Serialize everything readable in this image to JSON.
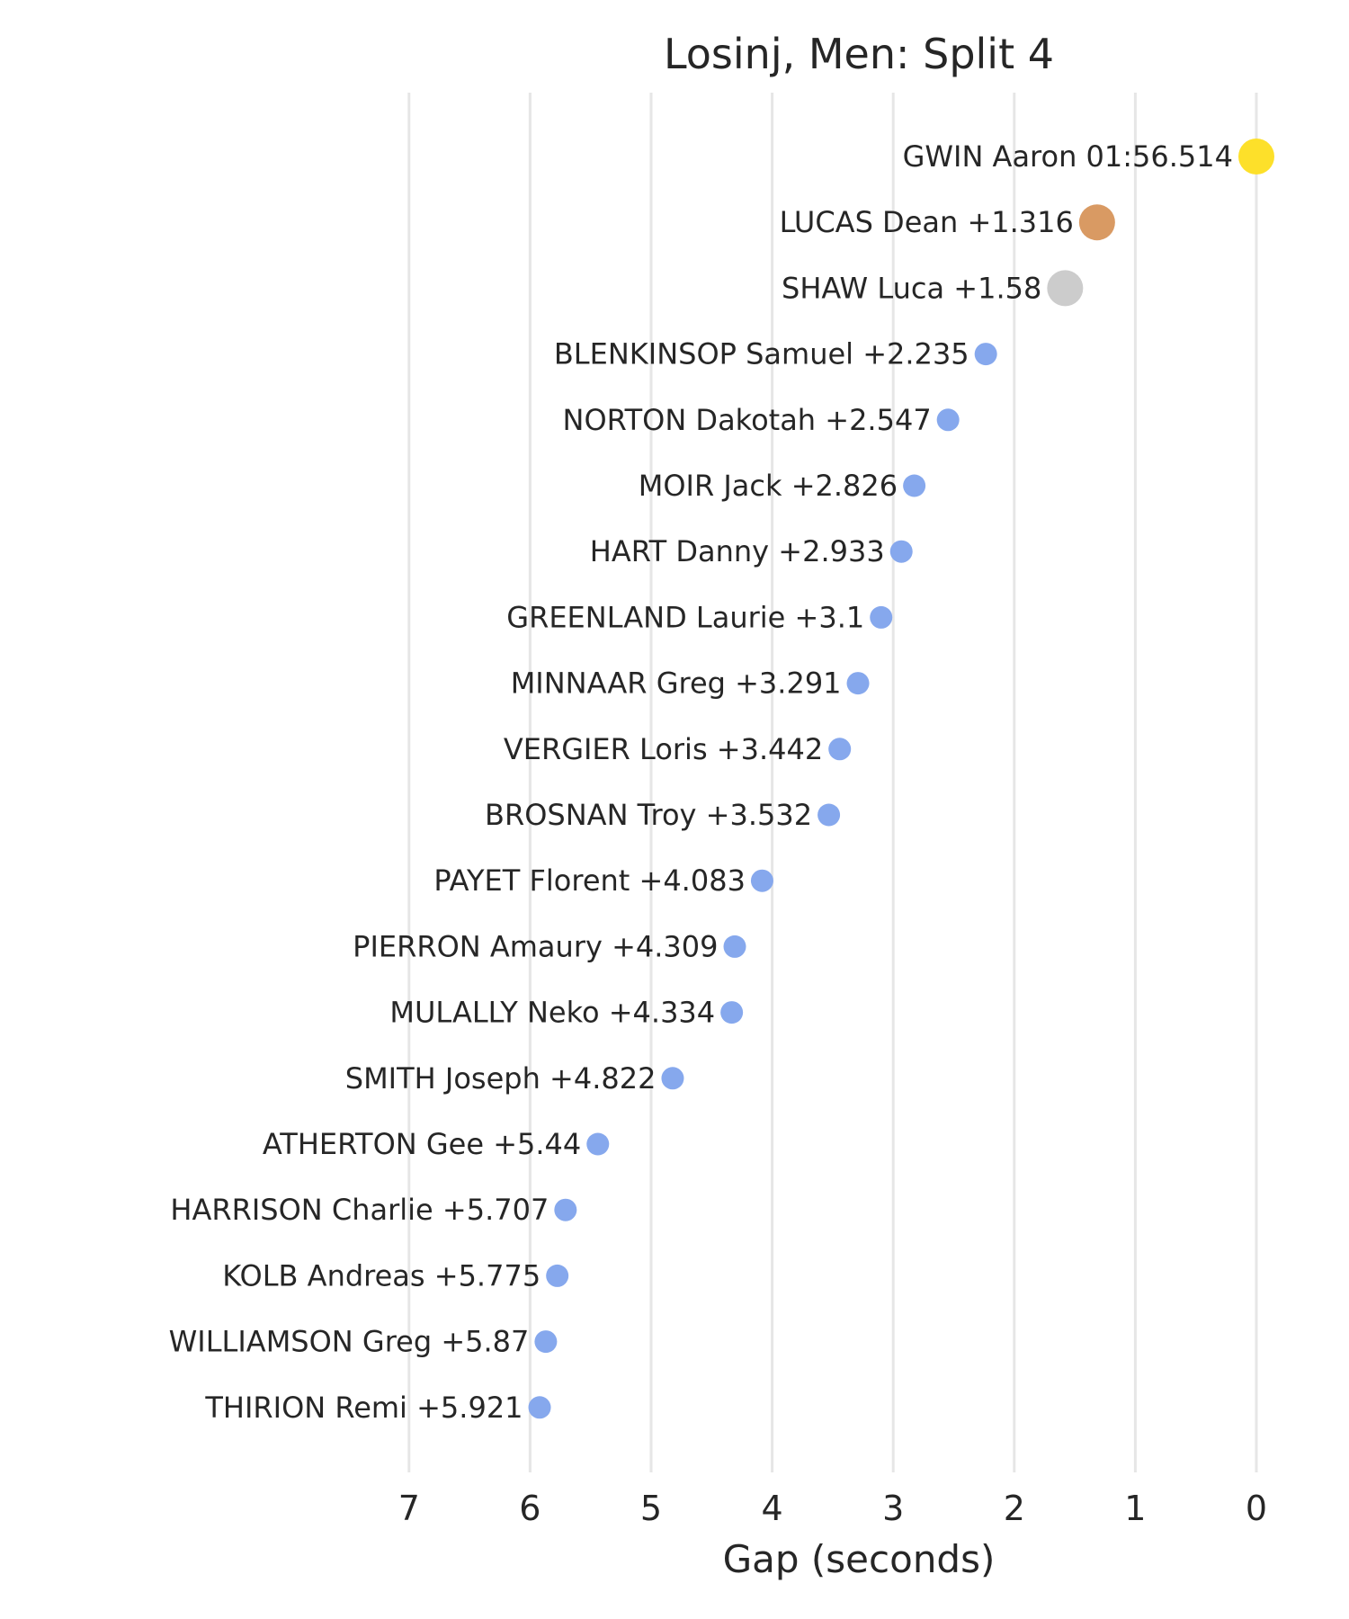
{
  "chart_data": {
    "type": "scatter",
    "title": "Losinj, Men: Split 4",
    "xlabel": "Gap (seconds)",
    "ylabel": "",
    "xlim": [
      7.5,
      -0.2
    ],
    "x_inverted": true,
    "xticks": [
      "7",
      "6",
      "5",
      "4",
      "3",
      "2",
      "1",
      "0"
    ],
    "grid": "vertical",
    "points": [
      {
        "label": "GWIN Aaron 01:56.514",
        "x": 0,
        "color": "#fde02a",
        "size": "large"
      },
      {
        "label": "LUCAS Dean +1.316",
        "x": 1.316,
        "color": "#d99a63",
        "size": "large"
      },
      {
        "label": "SHAW Luca +1.58",
        "x": 1.58,
        "color": "#cccccc",
        "size": "large"
      },
      {
        "label": "BLENKINSOP Samuel +2.235",
        "x": 2.235,
        "color": "#86a8ed",
        "size": "small"
      },
      {
        "label": "NORTON Dakotah +2.547",
        "x": 2.547,
        "color": "#86a8ed",
        "size": "small"
      },
      {
        "label": "MOIR Jack +2.826",
        "x": 2.826,
        "color": "#86a8ed",
        "size": "small"
      },
      {
        "label": "HART Danny +2.933",
        "x": 2.933,
        "color": "#86a8ed",
        "size": "small"
      },
      {
        "label": "GREENLAND Laurie +3.1",
        "x": 3.1,
        "color": "#86a8ed",
        "size": "small"
      },
      {
        "label": "MINNAAR Greg +3.291",
        "x": 3.291,
        "color": "#86a8ed",
        "size": "small"
      },
      {
        "label": "VERGIER Loris +3.442",
        "x": 3.442,
        "color": "#86a8ed",
        "size": "small"
      },
      {
        "label": "BROSNAN Troy +3.532",
        "x": 3.532,
        "color": "#86a8ed",
        "size": "small"
      },
      {
        "label": "PAYET Florent +4.083",
        "x": 4.083,
        "color": "#86a8ed",
        "size": "small"
      },
      {
        "label": "PIERRON Amaury +4.309",
        "x": 4.309,
        "color": "#86a8ed",
        "size": "small"
      },
      {
        "label": "MULALLY Neko +4.334",
        "x": 4.334,
        "color": "#86a8ed",
        "size": "small"
      },
      {
        "label": "SMITH Joseph +4.822",
        "x": 4.822,
        "color": "#86a8ed",
        "size": "small"
      },
      {
        "label": "ATHERTON Gee +5.44",
        "x": 5.44,
        "color": "#86a8ed",
        "size": "small"
      },
      {
        "label": "HARRISON Charlie +5.707",
        "x": 5.707,
        "color": "#86a8ed",
        "size": "small"
      },
      {
        "label": "KOLB Andreas +5.775",
        "x": 5.775,
        "color": "#86a8ed",
        "size": "small"
      },
      {
        "label": "WILLIAMSON Greg +5.87",
        "x": 5.87,
        "color": "#86a8ed",
        "size": "small"
      },
      {
        "label": "THIRION Remi +5.921",
        "x": 5.921,
        "color": "#86a8ed",
        "size": "small"
      }
    ]
  }
}
